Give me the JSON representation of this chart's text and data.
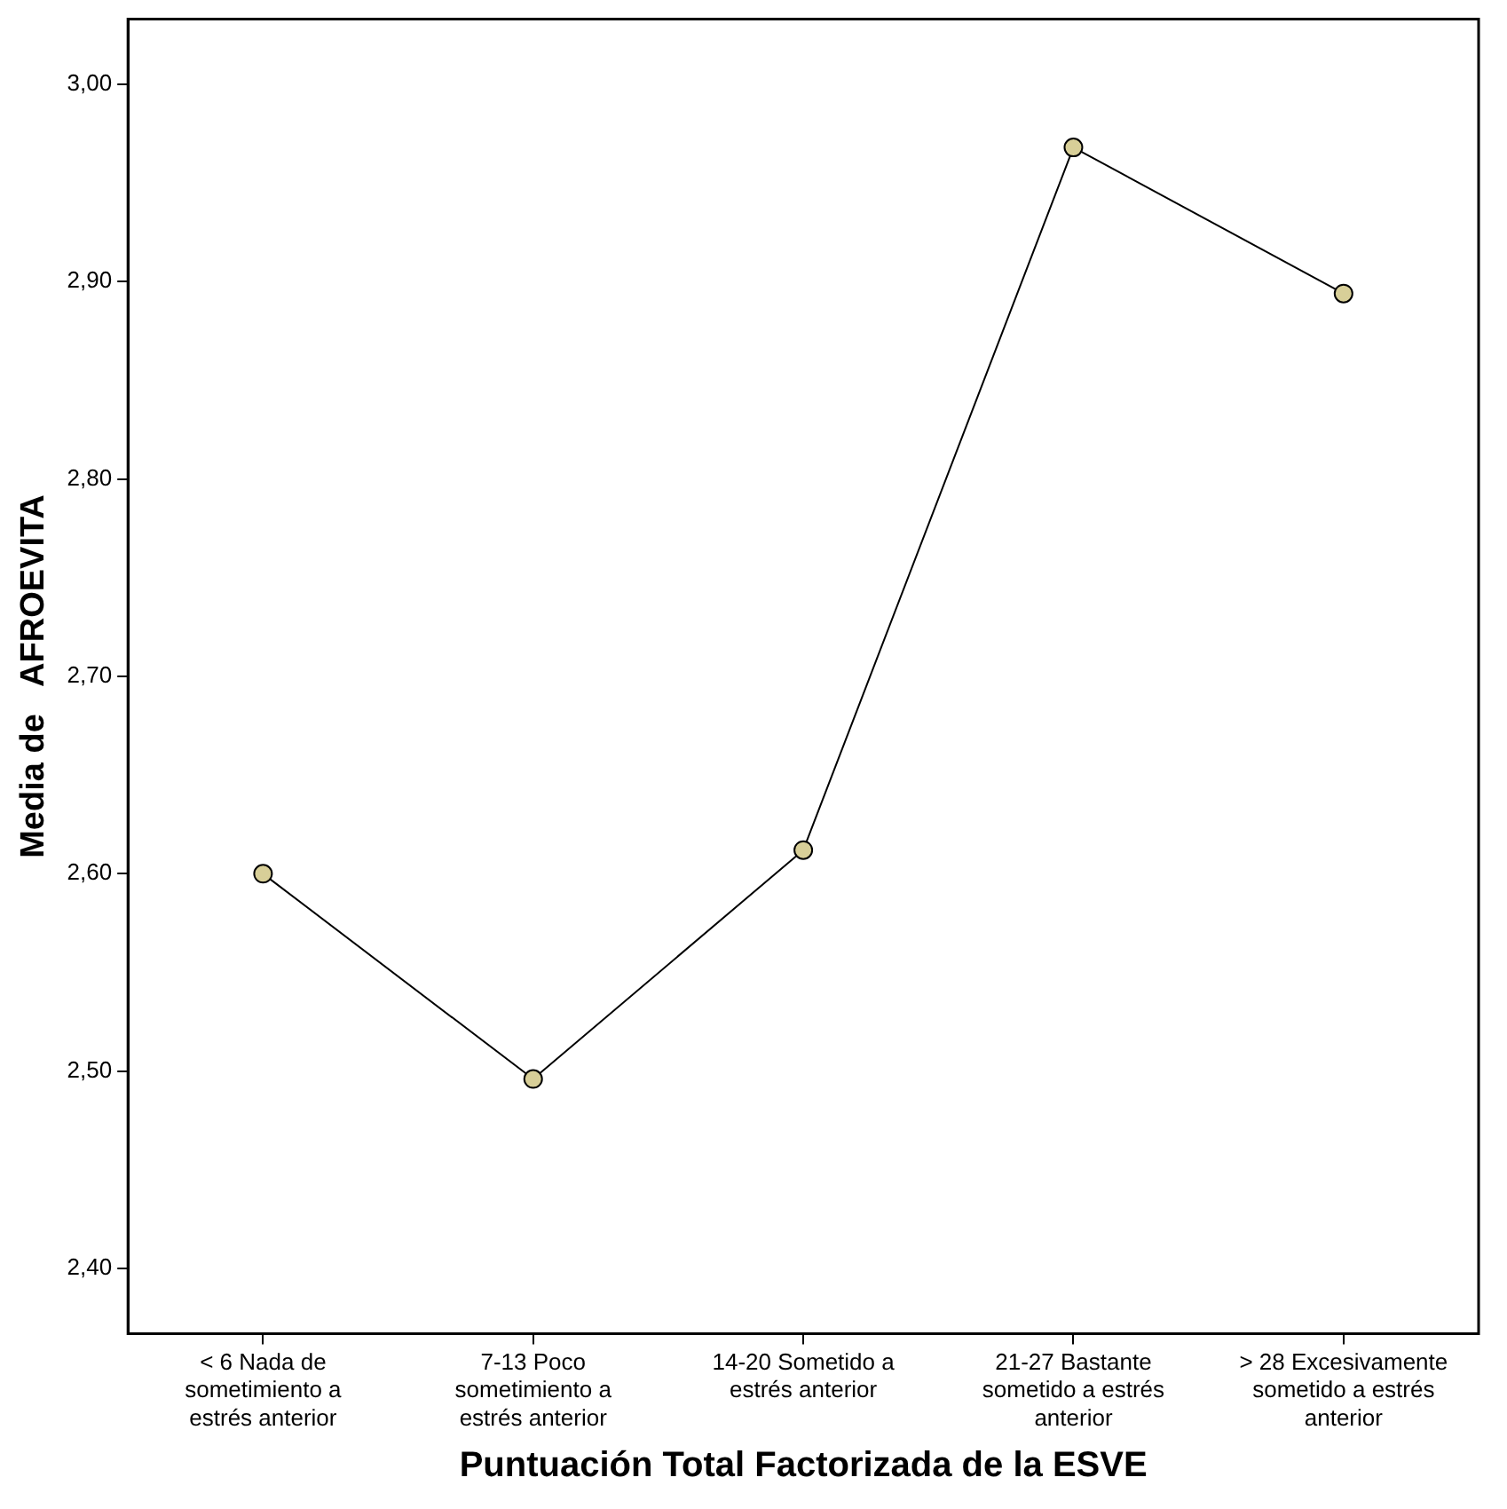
{
  "chart_data": {
    "type": "line",
    "xlabel": "Puntuación Total Factorizada de la ESVE",
    "ylabel": "Media de   AFROEVITA",
    "categories": [
      "< 6 Nada de sometimiento a estrés anterior",
      "7-13 Poco sometimiento a estrés anterior",
      "14-20 Sometido a estrés anterior",
      "21-27 Bastante sometido a estrés anterior",
      "> 28 Excesivamente sometido a estrés anterior"
    ],
    "series": [
      {
        "color": "#d8cf98",
        "values": [
          2.6,
          2.496,
          2.612,
          2.968,
          2.894
        ]
      }
    ],
    "ylim": [
      2.367,
      3.033
    ],
    "yticks": [
      {
        "value": 2.4,
        "label": "2,40"
      },
      {
        "value": 2.5,
        "label": "2,50"
      },
      {
        "value": 2.6,
        "label": "2,60"
      },
      {
        "value": 2.7,
        "label": "2,70"
      },
      {
        "value": 2.8,
        "label": "2,80"
      },
      {
        "value": 2.9,
        "label": "2,90"
      },
      {
        "value": 3.0,
        "label": "3,00"
      }
    ],
    "marker": "circle",
    "line_style": "solid",
    "grid": false,
    "legend": false
  }
}
